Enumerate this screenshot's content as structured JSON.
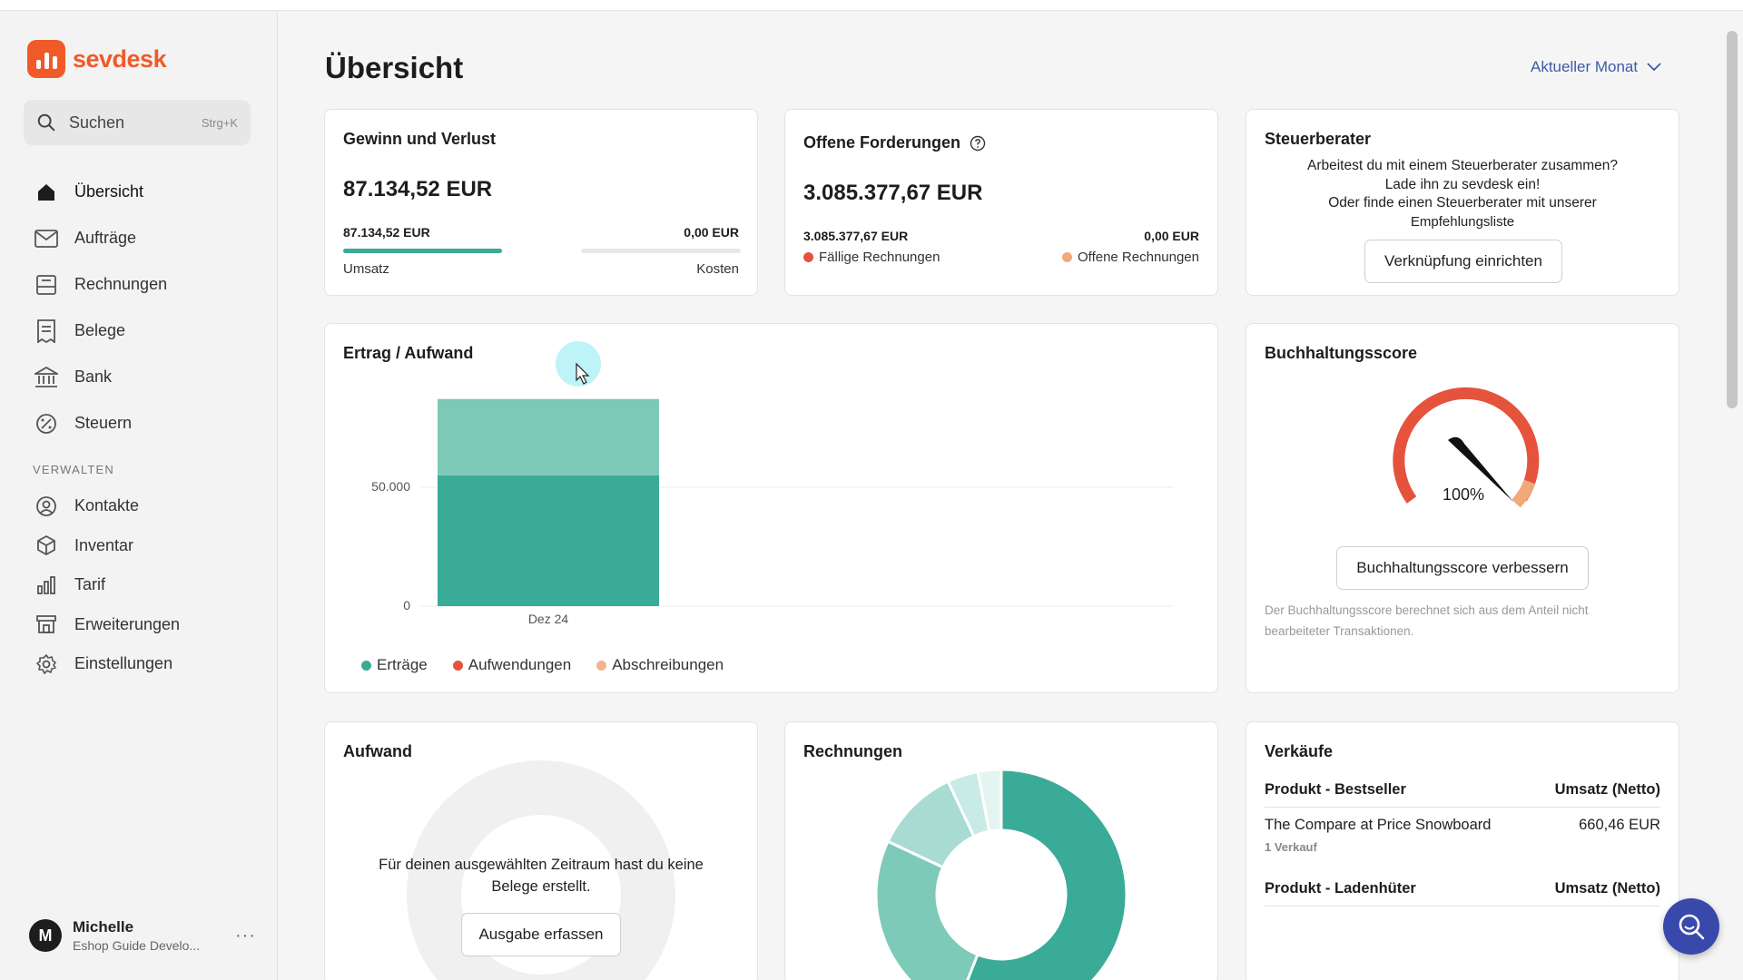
{
  "app": {
    "logo_text": "sevdesk",
    "brand_color": "#f05a28",
    "accent_color": "#3aab97"
  },
  "sidebar": {
    "search_label": "Suchen",
    "search_shortcut": "Strg+K",
    "items": [
      {
        "label": "Übersicht",
        "icon": "home-icon"
      },
      {
        "label": "Aufträge",
        "icon": "mail-icon"
      },
      {
        "label": "Rechnungen",
        "icon": "invoice-icon"
      },
      {
        "label": "Belege",
        "icon": "receipt-icon"
      },
      {
        "label": "Bank",
        "icon": "bank-icon"
      },
      {
        "label": "Steuern",
        "icon": "tax-icon"
      }
    ],
    "section_label": "VERWALTEN",
    "manage_items": [
      {
        "label": "Kontakte",
        "icon": "contact-icon"
      },
      {
        "label": "Inventar",
        "icon": "box-icon"
      },
      {
        "label": "Tarif",
        "icon": "bar-chart-icon"
      },
      {
        "label": "Erweiterungen",
        "icon": "store-icon"
      },
      {
        "label": "Einstellungen",
        "icon": "gear-icon"
      }
    ],
    "user": {
      "initial": "M",
      "name": "Michelle",
      "subtitle": "Eshop Guide Develo...",
      "more": "···"
    }
  },
  "header": {
    "title": "Übersicht",
    "period": "Aktueller Monat"
  },
  "profit_loss": {
    "title": "Gewinn und Verlust",
    "amount": "87.134,52 EUR",
    "revenue_value": "87.134,52 EUR",
    "costs_value": "0,00 EUR",
    "revenue_label": "Umsatz",
    "costs_label": "Kosten",
    "revenue_fraction": 1.0,
    "costs_fraction": 0.0
  },
  "receivables": {
    "title": "Offene Forderungen",
    "amount": "3.085.377,67 EUR",
    "due_value": "3.085.377,67 EUR",
    "open_value": "0,00 EUR",
    "due_label": "Fällige Rechnungen",
    "open_label": "Offene Rechnungen",
    "due_color": "#e5533d",
    "open_color": "#f1a97a"
  },
  "advisor": {
    "title": "Steuerberater",
    "line1": "Arbeitest du mit einem Steuerberater zusammen?",
    "line2": "Lade ihn zu sevdesk ein!",
    "line3": "Oder finde einen Steuerberater mit unserer",
    "link": "Empfehlungsliste",
    "button": "Verknüpfung einrichten"
  },
  "income_expense": {
    "title": "Ertrag / Aufwand",
    "legend": [
      {
        "label": "Erträge",
        "color": "#3aab97"
      },
      {
        "label": "Aufwendungen",
        "color": "#e5533d"
      },
      {
        "label": "Abschreibungen",
        "color": "#f1b48f"
      }
    ]
  },
  "chart_data": [
    {
      "type": "bar",
      "title": "Ertrag / Aufwand",
      "categories": [
        "Dez 24"
      ],
      "series": [
        {
          "name": "Erträge",
          "values": [
            87134.52
          ]
        }
      ],
      "stack_segments": [
        55000,
        32134.52
      ],
      "ylim": [
        0,
        90000
      ],
      "yticks": [
        0,
        50000
      ],
      "ytick_labels": [
        "0",
        "50.000"
      ],
      "legend": "bottom"
    },
    {
      "type": "pie",
      "title": "Rechnungen",
      "slices": [
        56,
        26,
        11,
        4,
        3
      ],
      "colors": [
        "#3aab97",
        "#7ecab9",
        "#a8dbd2",
        "#c9ebe5",
        "#e4f4f1"
      ]
    }
  ],
  "score": {
    "title": "Buchhaltungsscore",
    "value_label": "100%",
    "value": 100,
    "button": "Buchhaltungsscore verbessern",
    "note_line1": "Der Buchhaltungsscore berechnet sich aus dem Anteil nicht",
    "note_line2": "bearbeiteter Transaktionen."
  },
  "expenses": {
    "title": "Aufwand",
    "message_line1": "Für deinen ausgewählten Zeitraum hast du keine",
    "message_line2": "Belege erstellt.",
    "button": "Ausgabe erfassen"
  },
  "invoices": {
    "title": "Rechnungen"
  },
  "sales": {
    "title": "Verkäufe",
    "bestseller_header": "Produkt - Bestseller",
    "revenue_header": "Umsatz (Netto)",
    "bestseller_name": "The Compare at Price Snowboard",
    "bestseller_value": "660,46 EUR",
    "bestseller_count": "1 Verkauf",
    "slow_header": "Produkt - Ladenhüter",
    "slow_revenue_header": "Umsatz (Netto)"
  }
}
